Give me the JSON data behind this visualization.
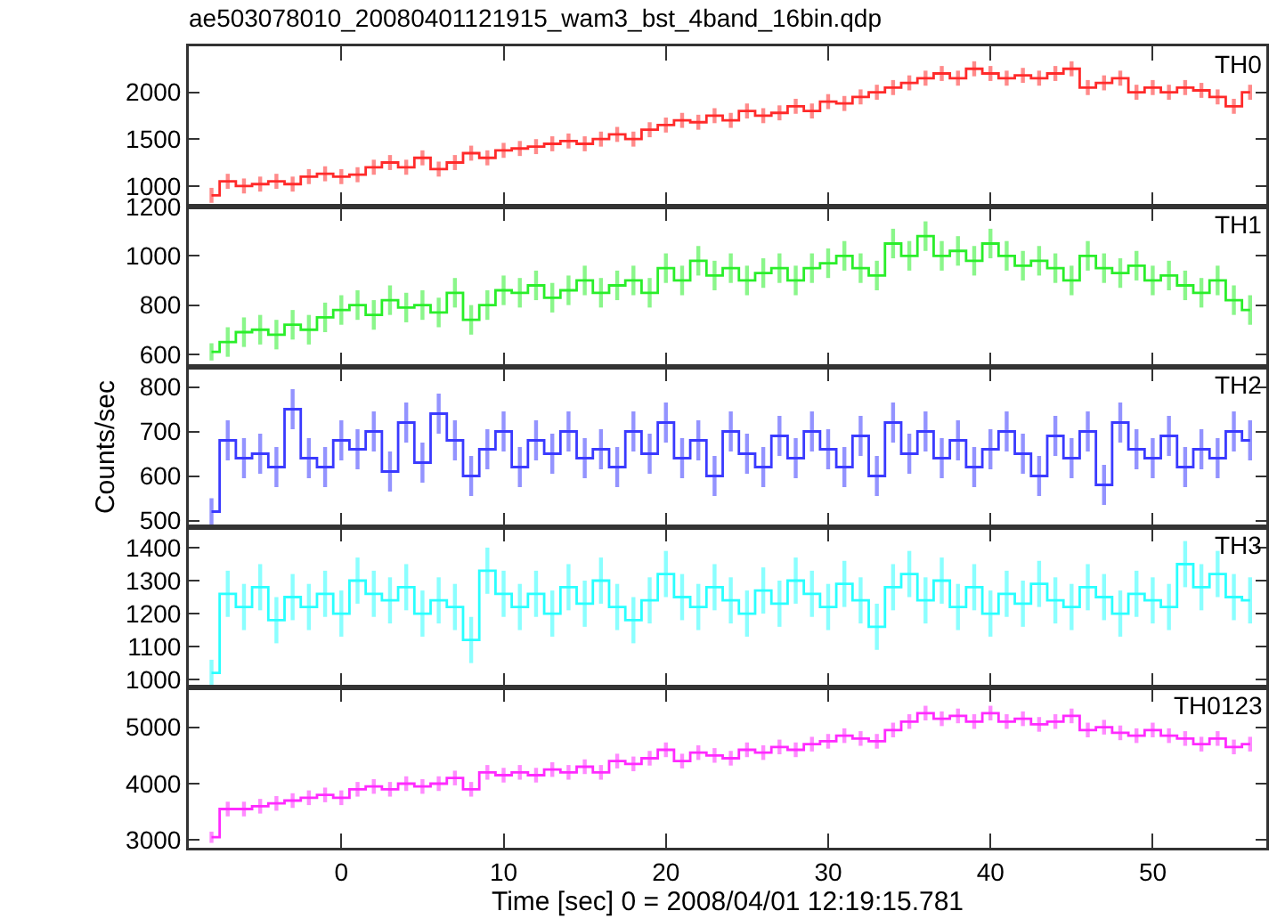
{
  "chart_data": [
    {
      "type": "step",
      "title": "ae503078010_20080401121915_wam3_bst_4band_16bin.qdp",
      "tick_labels": "y",
      "x": [
        -8,
        -7,
        -6,
        -5,
        -4,
        -3,
        -2,
        -1,
        0,
        1,
        2,
        3,
        4,
        5,
        6,
        7,
        8,
        9,
        10,
        11,
        12,
        13,
        14,
        15,
        16,
        17,
        18,
        19,
        20,
        21,
        22,
        23,
        24,
        25,
        26,
        27,
        28,
        29,
        30,
        31,
        32,
        33,
        34,
        35,
        36,
        37,
        38,
        39,
        40,
        41,
        42,
        43,
        44,
        45,
        46,
        47,
        48,
        49,
        50,
        51,
        52,
        53,
        54,
        55,
        56
      ],
      "xlim": [
        -9.4,
        57
      ],
      "xticks": [
        {
          "value": 0,
          "label": null
        },
        {
          "value": 10,
          "label": null
        },
        {
          "value": 20,
          "label": null
        },
        {
          "value": 30,
          "label": null
        },
        {
          "value": 40,
          "label": null
        },
        {
          "value": 50,
          "label": null
        }
      ],
      "ylim": [
        780,
        2490
      ],
      "yticks": [
        1000,
        1500,
        2000
      ],
      "series": [
        {
          "name": "TH0",
          "color": "#ff2a2a",
          "values": [
            900,
            1050,
            1000,
            1020,
            1050,
            1020,
            1100,
            1130,
            1100,
            1120,
            1200,
            1250,
            1200,
            1300,
            1180,
            1250,
            1350,
            1300,
            1380,
            1400,
            1420,
            1450,
            1480,
            1450,
            1500,
            1550,
            1500,
            1600,
            1650,
            1700,
            1680,
            1750,
            1700,
            1800,
            1750,
            1780,
            1850,
            1800,
            1900,
            1880,
            1950,
            2000,
            2050,
            2100,
            2150,
            2200,
            2150,
            2250,
            2200,
            2150,
            2180,
            2150,
            2200,
            2250,
            2050,
            2100,
            2150,
            2000,
            2050,
            2000,
            2050,
            2020,
            1950,
            1850,
            2000
          ],
          "errors": [
            80,
            80,
            80,
            80,
            80,
            80,
            80,
            80,
            80,
            80,
            80,
            80,
            80,
            80,
            80,
            80,
            80,
            80,
            80,
            80,
            80,
            80,
            80,
            80,
            80,
            80,
            80,
            80,
            80,
            80,
            80,
            80,
            80,
            80,
            80,
            80,
            80,
            80,
            80,
            80,
            80,
            80,
            80,
            80,
            80,
            80,
            80,
            80,
            80,
            80,
            80,
            80,
            80,
            80,
            80,
            80,
            80,
            80,
            80,
            80,
            80,
            80,
            80,
            80,
            80
          ]
        }
      ]
    },
    {
      "type": "step",
      "tick_labels": "y",
      "x": [
        -8,
        -7,
        -6,
        -5,
        -4,
        -3,
        -2,
        -1,
        0,
        1,
        2,
        3,
        4,
        5,
        6,
        7,
        8,
        9,
        10,
        11,
        12,
        13,
        14,
        15,
        16,
        17,
        18,
        19,
        20,
        21,
        22,
        23,
        24,
        25,
        26,
        27,
        28,
        29,
        30,
        31,
        32,
        33,
        34,
        35,
        36,
        37,
        38,
        39,
        40,
        41,
        42,
        43,
        44,
        45,
        46,
        47,
        48,
        49,
        50,
        51,
        52,
        53,
        54,
        55,
        56
      ],
      "xlim": [
        -9.4,
        57
      ],
      "xticks": [
        {
          "value": 0,
          "label": null
        },
        {
          "value": 10,
          "label": null
        },
        {
          "value": 20,
          "label": null
        },
        {
          "value": 30,
          "label": null
        },
        {
          "value": 40,
          "label": null
        },
        {
          "value": 50,
          "label": null
        }
      ],
      "ylim": [
        549,
        1200
      ],
      "yticks": [
        600,
        800,
        1000,
        1200
      ],
      "series": [
        {
          "name": "TH1",
          "color": "#2aee2a",
          "values": [
            610,
            650,
            690,
            700,
            680,
            720,
            700,
            750,
            780,
            800,
            760,
            820,
            790,
            800,
            770,
            850,
            740,
            800,
            860,
            850,
            880,
            830,
            860,
            900,
            850,
            880,
            900,
            850,
            950,
            900,
            980,
            920,
            950,
            900,
            930,
            950,
            900,
            950,
            970,
            1000,
            950,
            920,
            1050,
            1000,
            1080,
            1000,
            1020,
            980,
            1050,
            1000,
            960,
            980,
            950,
            900,
            1000,
            950,
            930,
            960,
            900,
            920,
            880,
            850,
            900,
            820,
            780
          ],
          "errors": [
            35,
            60,
            60,
            60,
            60,
            60,
            60,
            60,
            60,
            60,
            60,
            60,
            60,
            60,
            60,
            60,
            60,
            60,
            60,
            60,
            60,
            60,
            60,
            60,
            60,
            60,
            60,
            60,
            60,
            60,
            60,
            60,
            60,
            60,
            60,
            60,
            60,
            60,
            60,
            60,
            60,
            60,
            60,
            60,
            60,
            60,
            60,
            60,
            60,
            60,
            60,
            60,
            60,
            60,
            60,
            60,
            60,
            60,
            60,
            60,
            60,
            60,
            60,
            60,
            60
          ]
        }
      ]
    },
    {
      "type": "step",
      "tick_labels": "y",
      "ylabel": "Counts/sec",
      "x": [
        -8,
        -7,
        -6,
        -5,
        -4,
        -3,
        -2,
        -1,
        0,
        1,
        2,
        3,
        4,
        5,
        6,
        7,
        8,
        9,
        10,
        11,
        12,
        13,
        14,
        15,
        16,
        17,
        18,
        19,
        20,
        21,
        22,
        23,
        24,
        25,
        26,
        27,
        28,
        29,
        30,
        31,
        32,
        33,
        34,
        35,
        36,
        37,
        38,
        39,
        40,
        41,
        42,
        43,
        44,
        45,
        46,
        47,
        48,
        49,
        50,
        51,
        52,
        53,
        54,
        55,
        56
      ],
      "xlim": [
        -9.4,
        57
      ],
      "xticks": [
        {
          "value": 0,
          "label": null
        },
        {
          "value": 10,
          "label": null
        },
        {
          "value": 20,
          "label": null
        },
        {
          "value": 30,
          "label": null
        },
        {
          "value": 40,
          "label": null
        },
        {
          "value": 50,
          "label": null
        }
      ],
      "ylim": [
        485,
        845
      ],
      "yticks": [
        500,
        600,
        700,
        800
      ],
      "series": [
        {
          "name": "TH2",
          "color": "#3a3aff",
          "values": [
            520,
            680,
            640,
            650,
            620,
            750,
            640,
            620,
            680,
            660,
            700,
            610,
            720,
            630,
            740,
            680,
            600,
            660,
            700,
            620,
            680,
            650,
            700,
            640,
            660,
            620,
            700,
            650,
            720,
            640,
            680,
            600,
            700,
            650,
            620,
            690,
            640,
            700,
            660,
            620,
            690,
            600,
            720,
            650,
            700,
            640,
            680,
            620,
            660,
            700,
            650,
            600,
            690,
            640,
            700,
            580,
            720,
            660,
            640,
            690,
            620,
            660,
            640,
            700,
            680
          ],
          "errors": [
            30,
            45,
            45,
            45,
            45,
            45,
            45,
            45,
            45,
            45,
            45,
            45,
            45,
            45,
            45,
            45,
            45,
            45,
            45,
            45,
            45,
            45,
            45,
            45,
            45,
            45,
            45,
            45,
            45,
            45,
            45,
            45,
            45,
            45,
            45,
            45,
            45,
            45,
            45,
            45,
            45,
            45,
            45,
            45,
            45,
            45,
            45,
            45,
            45,
            45,
            45,
            45,
            45,
            45,
            45,
            45,
            45,
            45,
            45,
            45,
            45,
            45,
            45,
            45,
            45
          ]
        }
      ]
    },
    {
      "type": "step",
      "tick_labels": "y",
      "x": [
        -8,
        -7,
        -6,
        -5,
        -4,
        -3,
        -2,
        -1,
        0,
        1,
        2,
        3,
        4,
        5,
        6,
        7,
        8,
        9,
        10,
        11,
        12,
        13,
        14,
        15,
        16,
        17,
        18,
        19,
        20,
        21,
        22,
        23,
        24,
        25,
        26,
        27,
        28,
        29,
        30,
        31,
        32,
        33,
        34,
        35,
        36,
        37,
        38,
        39,
        40,
        41,
        42,
        43,
        44,
        45,
        46,
        47,
        48,
        49,
        50,
        51,
        52,
        53,
        54,
        55,
        56
      ],
      "xlim": [
        -9.4,
        57
      ],
      "xticks": [
        {
          "value": 0,
          "label": null
        },
        {
          "value": 10,
          "label": null
        },
        {
          "value": 20,
          "label": null
        },
        {
          "value": 30,
          "label": null
        },
        {
          "value": 40,
          "label": null
        },
        {
          "value": 50,
          "label": null
        }
      ],
      "ylim": [
        976,
        1462
      ],
      "yticks": [
        1000,
        1100,
        1200,
        1300,
        1400
      ],
      "series": [
        {
          "name": "TH3",
          "color": "#2affff",
          "values": [
            1020,
            1260,
            1220,
            1280,
            1180,
            1250,
            1220,
            1260,
            1200,
            1300,
            1260,
            1240,
            1280,
            1200,
            1240,
            1220,
            1120,
            1330,
            1260,
            1220,
            1260,
            1200,
            1280,
            1230,
            1300,
            1220,
            1180,
            1240,
            1320,
            1250,
            1220,
            1280,
            1240,
            1200,
            1270,
            1230,
            1300,
            1260,
            1220,
            1290,
            1240,
            1160,
            1280,
            1320,
            1240,
            1300,
            1220,
            1280,
            1200,
            1260,
            1230,
            1290,
            1240,
            1220,
            1280,
            1250,
            1200,
            1260,
            1240,
            1220,
            1350,
            1280,
            1320,
            1250,
            1240
          ],
          "errors": [
            40,
            70,
            70,
            70,
            70,
            70,
            70,
            70,
            70,
            70,
            70,
            70,
            70,
            70,
            70,
            70,
            70,
            70,
            70,
            70,
            70,
            70,
            70,
            70,
            70,
            70,
            70,
            70,
            70,
            70,
            70,
            70,
            70,
            70,
            70,
            70,
            70,
            70,
            70,
            70,
            70,
            70,
            70,
            70,
            70,
            70,
            70,
            70,
            70,
            70,
            70,
            70,
            70,
            70,
            70,
            70,
            70,
            70,
            70,
            70,
            70,
            70,
            70,
            70,
            70
          ]
        }
      ]
    },
    {
      "type": "step",
      "xlabel": "Time [sec] 0 = 2008/04/01 12:19:15.781",
      "x": [
        -8,
        -7,
        -6,
        -5,
        -4,
        -3,
        -2,
        -1,
        0,
        1,
        2,
        3,
        4,
        5,
        6,
        7,
        8,
        9,
        10,
        11,
        12,
        13,
        14,
        15,
        16,
        17,
        18,
        19,
        20,
        21,
        22,
        23,
        24,
        25,
        26,
        27,
        28,
        29,
        30,
        31,
        32,
        33,
        34,
        35,
        36,
        37,
        38,
        39,
        40,
        41,
        42,
        43,
        44,
        45,
        46,
        47,
        48,
        49,
        50,
        51,
        52,
        53,
        54,
        55,
        56
      ],
      "xlim": [
        -9.4,
        57
      ],
      "xticks": [
        0,
        10,
        20,
        30,
        40,
        50
      ],
      "ylim": [
        2864,
        5704
      ],
      "yticks": [
        3000,
        4000,
        5000
      ],
      "series": [
        {
          "name": "TH0123",
          "color": "#ff2aff",
          "values": [
            3050,
            3550,
            3550,
            3600,
            3650,
            3700,
            3750,
            3800,
            3750,
            3900,
            3950,
            3900,
            4000,
            3950,
            4000,
            4100,
            3900,
            4200,
            4150,
            4200,
            4150,
            4250,
            4200,
            4300,
            4200,
            4400,
            4350,
            4450,
            4600,
            4400,
            4550,
            4500,
            4450,
            4600,
            4550,
            4650,
            4600,
            4700,
            4750,
            4850,
            4800,
            4750,
            4950,
            5100,
            5250,
            5150,
            5200,
            5100,
            5250,
            5100,
            5150,
            5050,
            5100,
            5200,
            4950,
            5000,
            4900,
            4850,
            4950,
            4850,
            4800,
            4700,
            4800,
            4650,
            4700
          ],
          "errors": [
            100,
            130,
            130,
            130,
            130,
            130,
            130,
            130,
            130,
            130,
            130,
            130,
            130,
            130,
            130,
            130,
            130,
            130,
            130,
            130,
            130,
            130,
            130,
            130,
            130,
            130,
            130,
            130,
            130,
            130,
            130,
            130,
            130,
            130,
            130,
            130,
            130,
            130,
            130,
            130,
            130,
            130,
            130,
            130,
            130,
            130,
            130,
            130,
            130,
            130,
            130,
            130,
            130,
            130,
            130,
            130,
            130,
            130,
            130,
            130,
            130,
            130,
            130,
            130,
            130
          ]
        }
      ]
    }
  ]
}
